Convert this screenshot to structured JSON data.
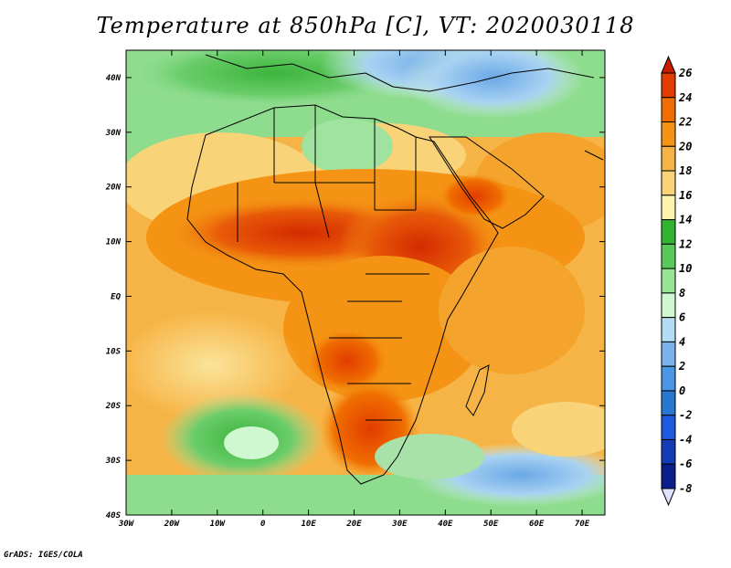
{
  "title": "Temperature at 850hPa [C], VT: 2020030118",
  "footer": "GrADS: IGES/COLA",
  "map": {
    "lon_range": [
      -30,
      75
    ],
    "lat_range": [
      -40,
      45
    ],
    "lat_ticks": [
      {
        "value": 40,
        "label": "40N"
      },
      {
        "value": 30,
        "label": "30N"
      },
      {
        "value": 20,
        "label": "20N"
      },
      {
        "value": 10,
        "label": "10N"
      },
      {
        "value": 0,
        "label": "EQ"
      },
      {
        "value": -10,
        "label": "10S"
      },
      {
        "value": -20,
        "label": "20S"
      },
      {
        "value": -30,
        "label": "30S"
      },
      {
        "value": -40,
        "label": "40S"
      }
    ],
    "lon_ticks": [
      {
        "value": -30,
        "label": "30W"
      },
      {
        "value": -20,
        "label": "20W"
      },
      {
        "value": -10,
        "label": "10W"
      },
      {
        "value": 0,
        "label": "0"
      },
      {
        "value": 10,
        "label": "10E"
      },
      {
        "value": 20,
        "label": "20E"
      },
      {
        "value": 30,
        "label": "30E"
      },
      {
        "value": 40,
        "label": "40E"
      },
      {
        "value": 50,
        "label": "50E"
      },
      {
        "value": 60,
        "label": "60E"
      },
      {
        "value": 70,
        "label": "70E"
      }
    ]
  },
  "colorbar": {
    "labels": [
      "26",
      "24",
      "22",
      "20",
      "18",
      "16",
      "14",
      "12",
      "10",
      "8",
      "6",
      "4",
      "2",
      "0",
      "-2",
      "-4",
      "-6",
      "-8"
    ],
    "colors": [
      "#c81e00",
      "#e23c00",
      "#f06e00",
      "#f49314",
      "#f7b446",
      "#f9d378",
      "#fdf2ae",
      "#32b432",
      "#5ac85a",
      "#96e696",
      "#cff7d0",
      "#b4dcf5",
      "#7ab4eb",
      "#4a96e6",
      "#2878d2",
      "#1e5adc",
      "#143cb4",
      "#0a1e8c",
      "#0a0a64",
      "#dce2ff"
    ]
  }
}
